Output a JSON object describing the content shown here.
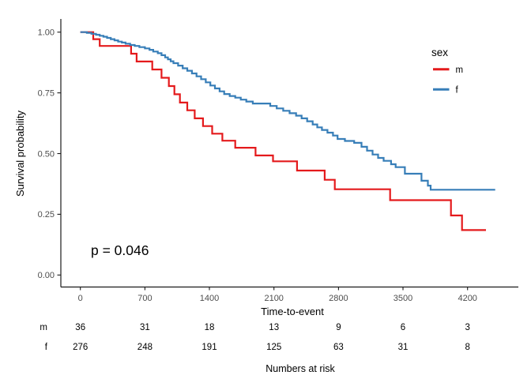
{
  "chart_data": {
    "type": "line",
    "subtype": "kaplan-meier-step",
    "title": "",
    "xlabel": "Time-to-event",
    "ylabel": "Survival probability",
    "annotation": "p = 0.046",
    "xlim": [
      0,
      4510
    ],
    "ylim": [
      0,
      1
    ],
    "grid": false,
    "x_ticks": [
      {
        "v": 0,
        "label": "0"
      },
      {
        "v": 700,
        "label": "700"
      },
      {
        "v": 1400,
        "label": "1400"
      },
      {
        "v": 2100,
        "label": "2100"
      },
      {
        "v": 2800,
        "label": "2800"
      },
      {
        "v": 3500,
        "label": "3500"
      },
      {
        "v": 4200,
        "label": "4200"
      }
    ],
    "y_ticks": [
      {
        "v": 0.0,
        "label": "0.00"
      },
      {
        "v": 0.25,
        "label": "0.25"
      },
      {
        "v": 0.5,
        "label": "0.50"
      },
      {
        "v": 0.75,
        "label": "0.75"
      },
      {
        "v": 1.0,
        "label": "1.00"
      }
    ],
    "legend": {
      "title": "sex",
      "position": "top-right"
    },
    "series": [
      {
        "name": "m",
        "color": "#E41A1C",
        "end_t": 4400,
        "points": [
          [
            0,
            1.0
          ],
          [
            140,
            0.971
          ],
          [
            210,
            0.943
          ],
          [
            550,
            0.911
          ],
          [
            610,
            0.879
          ],
          [
            780,
            0.846
          ],
          [
            880,
            0.812
          ],
          [
            960,
            0.778
          ],
          [
            1020,
            0.744
          ],
          [
            1080,
            0.71
          ],
          [
            1160,
            0.678
          ],
          [
            1240,
            0.645
          ],
          [
            1330,
            0.613
          ],
          [
            1430,
            0.582
          ],
          [
            1540,
            0.553
          ],
          [
            1680,
            0.524
          ],
          [
            1900,
            0.492
          ],
          [
            2090,
            0.468
          ],
          [
            2350,
            0.43
          ],
          [
            2650,
            0.392
          ],
          [
            2760,
            0.353
          ],
          [
            3360,
            0.308
          ],
          [
            4020,
            0.245
          ],
          [
            4140,
            0.185
          ]
        ]
      },
      {
        "name": "f",
        "color": "#377EB8",
        "end_t": 4500,
        "points": [
          [
            0,
            1.0
          ],
          [
            70,
            0.997
          ],
          [
            120,
            0.993
          ],
          [
            170,
            0.989
          ],
          [
            210,
            0.985
          ],
          [
            250,
            0.981
          ],
          [
            290,
            0.976
          ],
          [
            330,
            0.971
          ],
          [
            370,
            0.966
          ],
          [
            410,
            0.961
          ],
          [
            450,
            0.957
          ],
          [
            490,
            0.952
          ],
          [
            540,
            0.947
          ],
          [
            590,
            0.943
          ],
          [
            640,
            0.938
          ],
          [
            700,
            0.933
          ],
          [
            750,
            0.927
          ],
          [
            790,
            0.92
          ],
          [
            840,
            0.913
          ],
          [
            880,
            0.905
          ],
          [
            920,
            0.896
          ],
          [
            950,
            0.888
          ],
          [
            980,
            0.88
          ],
          [
            1010,
            0.872
          ],
          [
            1060,
            0.862
          ],
          [
            1110,
            0.851
          ],
          [
            1160,
            0.841
          ],
          [
            1210,
            0.83
          ],
          [
            1260,
            0.818
          ],
          [
            1310,
            0.806
          ],
          [
            1360,
            0.793
          ],
          [
            1410,
            0.78
          ],
          [
            1460,
            0.768
          ],
          [
            1510,
            0.756
          ],
          [
            1560,
            0.745
          ],
          [
            1620,
            0.737
          ],
          [
            1680,
            0.73
          ],
          [
            1740,
            0.722
          ],
          [
            1800,
            0.714
          ],
          [
            1870,
            0.706
          ],
          [
            2060,
            0.696
          ],
          [
            2130,
            0.686
          ],
          [
            2200,
            0.676
          ],
          [
            2270,
            0.666
          ],
          [
            2340,
            0.656
          ],
          [
            2400,
            0.645
          ],
          [
            2460,
            0.633
          ],
          [
            2520,
            0.62
          ],
          [
            2570,
            0.608
          ],
          [
            2620,
            0.597
          ],
          [
            2680,
            0.586
          ],
          [
            2740,
            0.574
          ],
          [
            2790,
            0.56
          ],
          [
            2870,
            0.552
          ],
          [
            2970,
            0.544
          ],
          [
            3050,
            0.528
          ],
          [
            3110,
            0.512
          ],
          [
            3170,
            0.496
          ],
          [
            3230,
            0.482
          ],
          [
            3290,
            0.47
          ],
          [
            3370,
            0.456
          ],
          [
            3420,
            0.444
          ],
          [
            3520,
            0.417
          ],
          [
            3700,
            0.388
          ],
          [
            3770,
            0.368
          ],
          [
            3800,
            0.351
          ]
        ]
      }
    ]
  },
  "risk_table": {
    "caption": "Numbers at risk",
    "time_points": [
      0,
      700,
      1400,
      2100,
      2800,
      3500,
      4200
    ],
    "rows": [
      {
        "label": "m",
        "counts": [
          "36",
          "31",
          "18",
          "13",
          "9",
          "6",
          "3"
        ]
      },
      {
        "label": "f",
        "counts": [
          "276",
          "248",
          "191",
          "125",
          "63",
          "31",
          "8"
        ]
      }
    ]
  }
}
